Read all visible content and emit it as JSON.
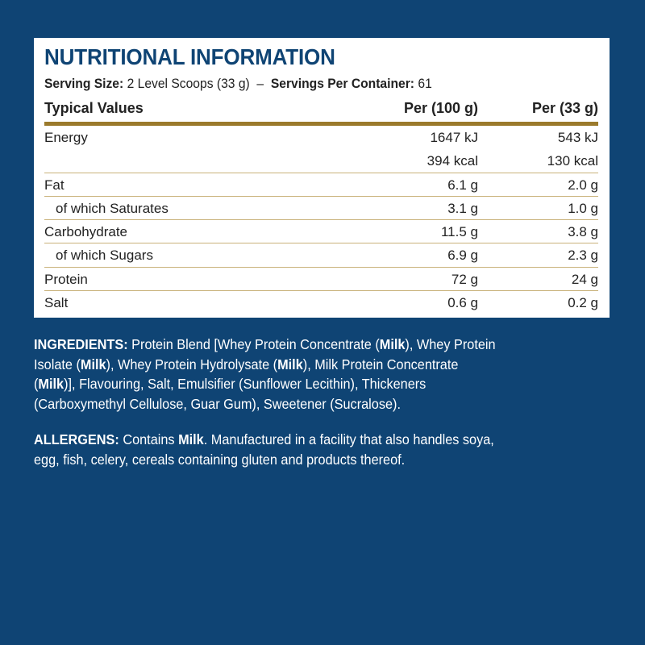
{
  "title": "NUTRITIONAL INFORMATION",
  "serving": {
    "size_label": "Serving Size:",
    "size_value": "2 Level Scoops (33 g)",
    "sep": "–",
    "per_container_label": "Servings Per Container:",
    "per_container_value": "61"
  },
  "table": {
    "headers": [
      "Typical Values",
      "Per (100 g)",
      "Per (33 g)"
    ],
    "rows": [
      {
        "label": "Energy",
        "per100": "1647 kJ",
        "perServing": "543 kJ",
        "indent": false,
        "line": false
      },
      {
        "label": "",
        "per100": "394 kcal",
        "perServing": "130 kcal",
        "indent": false,
        "line": true
      },
      {
        "label": "Fat",
        "per100": "6.1 g",
        "perServing": "2.0 g",
        "indent": false,
        "line": true
      },
      {
        "label": "of which Saturates",
        "per100": "3.1 g",
        "perServing": "1.0 g",
        "indent": true,
        "line": true
      },
      {
        "label": "Carbohydrate",
        "per100": "11.5 g",
        "perServing": "3.8 g",
        "indent": false,
        "line": true
      },
      {
        "label": "of which Sugars",
        "per100": "6.9 g",
        "perServing": "2.3 g",
        "indent": true,
        "line": true
      },
      {
        "label": "Protein",
        "per100": "72 g",
        "perServing": "24 g",
        "indent": false,
        "line": true
      },
      {
        "label": "Salt",
        "per100": "0.6 g",
        "perServing": "0.2 g",
        "indent": false,
        "line": false
      }
    ]
  },
  "ingredients": [
    [
      {
        "t": "INGREDIENTS: ",
        "b": true
      },
      {
        "t": "Protein Blend [Whey Protein Concentrate (",
        "b": false
      },
      {
        "t": "Milk",
        "b": true
      },
      {
        "t": "), Whey Protein",
        "b": false
      }
    ],
    [
      {
        "t": "Isolate (",
        "b": false
      },
      {
        "t": "Milk",
        "b": true
      },
      {
        "t": "), Whey Protein Hydrolysate (",
        "b": false
      },
      {
        "t": "Milk",
        "b": true
      },
      {
        "t": "), Milk Protein Concentrate",
        "b": false
      }
    ],
    [
      {
        "t": "(",
        "b": false
      },
      {
        "t": "Milk",
        "b": true
      },
      {
        "t": ")], Flavouring, Salt, Emulsifier (Sunflower Lecithin), Thickeners",
        "b": false
      }
    ],
    [
      {
        "t": "(Carboxymethyl Cellulose, Guar Gum), Sweetener (Sucralose).",
        "b": false
      }
    ]
  ],
  "allergens": [
    [
      {
        "t": "ALLERGENS: ",
        "b": true
      },
      {
        "t": "Contains ",
        "b": false
      },
      {
        "t": "Milk",
        "b": true
      },
      {
        "t": ". Manufactured in a facility that also handles soya,",
        "b": false
      }
    ],
    [
      {
        "t": "egg, fish, celery, cereals containing gluten and products thereof.",
        "b": false
      }
    ]
  ],
  "colors": {
    "background": "#0f4474",
    "panel": "#ffffff",
    "accent_gold": "#9b7a2c",
    "title": "#0f4474"
  }
}
